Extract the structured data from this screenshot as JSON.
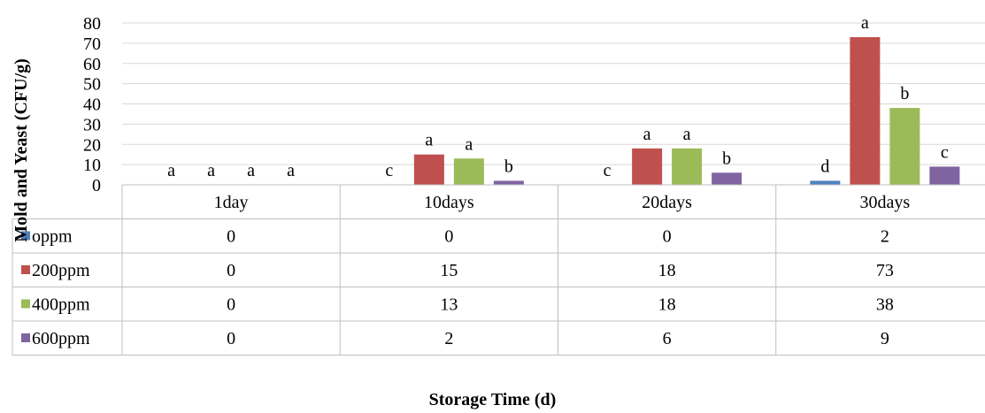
{
  "chart_data": {
    "type": "bar",
    "categories": [
      "1day",
      "10days",
      "20days",
      "30days"
    ],
    "series": [
      {
        "name": "oppm",
        "color": "#4f81bd",
        "values": [
          0,
          0,
          0,
          2
        ],
        "letters": [
          "a",
          "c",
          "c",
          "d"
        ]
      },
      {
        "name": "200ppm",
        "color": "#c0504d",
        "values": [
          0,
          15,
          18,
          73
        ],
        "letters": [
          "a",
          "a",
          "a",
          "a"
        ]
      },
      {
        "name": "400ppm",
        "color": "#9bbb59",
        "values": [
          0,
          13,
          18,
          38
        ],
        "letters": [
          "a",
          "a",
          "a",
          "b"
        ]
      },
      {
        "name": "600ppm",
        "color": "#8064a2",
        "values": [
          0,
          2,
          6,
          9
        ],
        "letters": [
          "a",
          "b",
          "b",
          "c"
        ]
      }
    ],
    "yticks": [
      0,
      10,
      20,
      30,
      40,
      50,
      60,
      70,
      80
    ],
    "ylim": [
      0,
      80
    ],
    "ylabel": "Mold and Yeast (CFU/g)",
    "xlabel": "Storage Time (d)",
    "grid": true,
    "legend": "data-table"
  }
}
